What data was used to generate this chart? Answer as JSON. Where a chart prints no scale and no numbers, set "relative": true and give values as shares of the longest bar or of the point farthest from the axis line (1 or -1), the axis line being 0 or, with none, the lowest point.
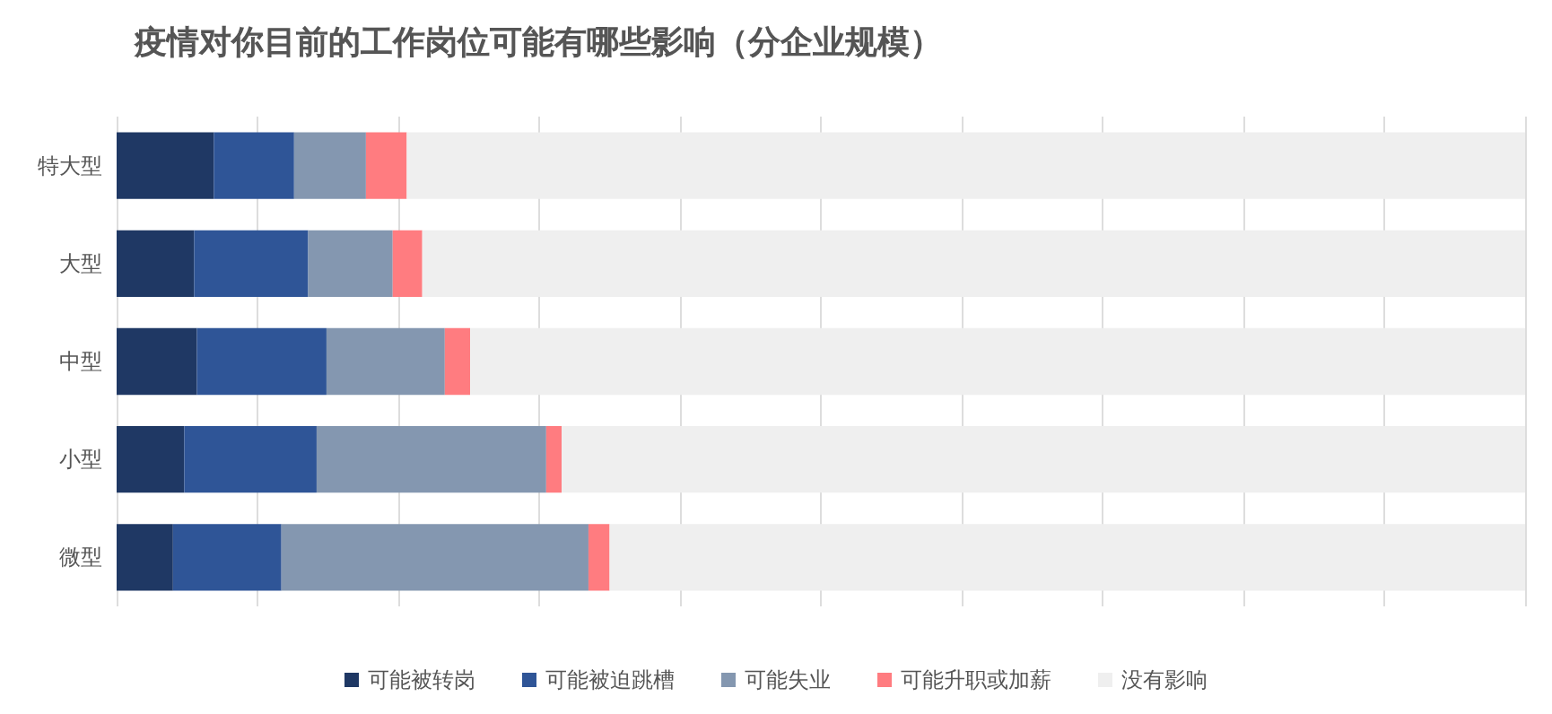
{
  "chart_data": {
    "type": "bar",
    "orientation": "horizontal",
    "stacked": true,
    "relative": true,
    "title": "疫情对你目前的工作岗位可能有哪些影响（分企业规模）",
    "categories": [
      "特大型",
      "大型",
      "中型",
      "小型",
      "微型"
    ],
    "series": [
      {
        "name": "可能被转岗",
        "color": "#1f3864",
        "values": [
          0.069,
          0.055,
          0.057,
          0.048,
          0.04
        ]
      },
      {
        "name": "可能被迫跳槽",
        "color": "#2f5597",
        "values": [
          0.057,
          0.081,
          0.092,
          0.094,
          0.077
        ]
      },
      {
        "name": "可能失业",
        "color": "#8497b0",
        "values": [
          0.051,
          0.06,
          0.084,
          0.163,
          0.218
        ]
      },
      {
        "name": "可能升职或加薪",
        "color": "#ff7c80",
        "values": [
          0.029,
          0.021,
          0.018,
          0.011,
          0.015
        ]
      },
      {
        "name": "没有影响",
        "color": "#efefef",
        "values": [
          0.794,
          0.783,
          0.749,
          0.684,
          0.65
        ]
      }
    ],
    "grid": "x",
    "legend": "bottom"
  }
}
